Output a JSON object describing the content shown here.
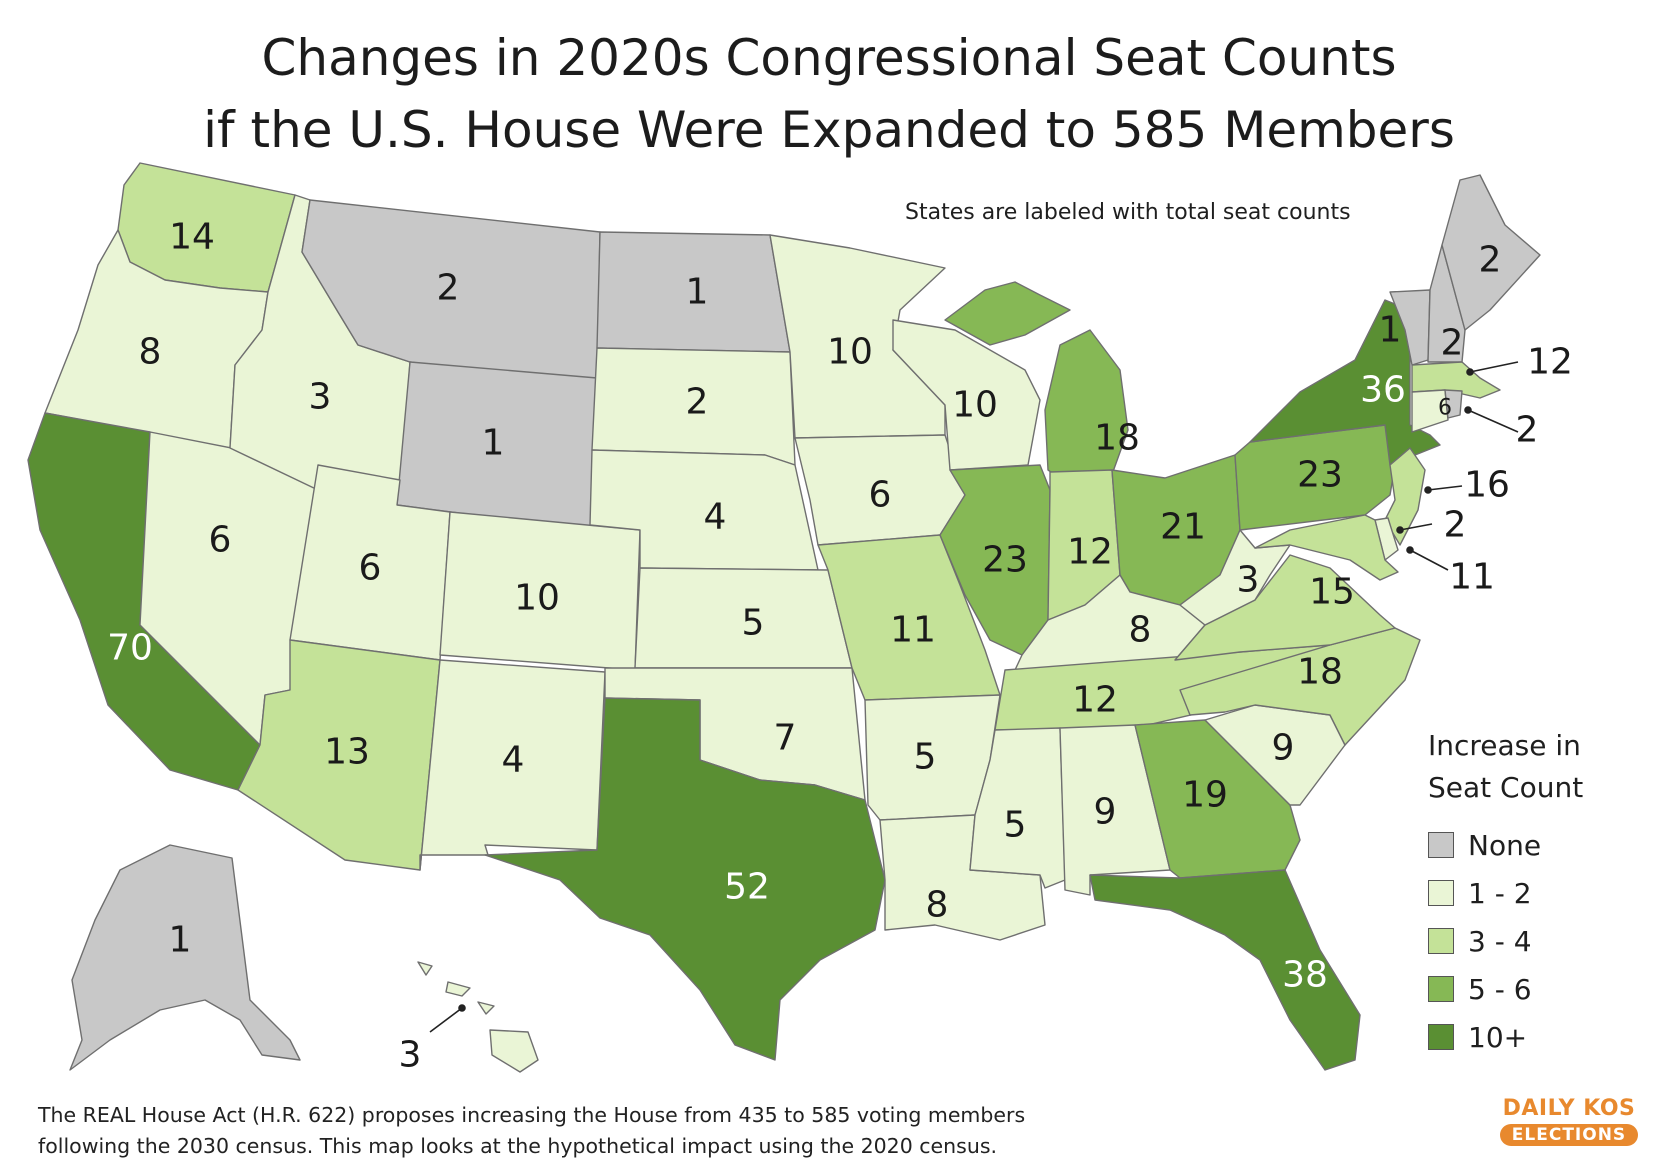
{
  "title": {
    "line1": "Changes in 2020s Congressional Seat Counts",
    "line2": "if the U.S. House Were Expanded to 585 Members"
  },
  "subtitle": "States are labeled with total seat counts",
  "legend": {
    "title_line1": "Increase in",
    "title_line2": "Seat Count",
    "items": [
      {
        "label": "None",
        "color": "#c8c8c8"
      },
      {
        "label": "1 - 2",
        "color": "#eaf5d6"
      },
      {
        "label": "3 - 4",
        "color": "#c4e298"
      },
      {
        "label": "5 - 6",
        "color": "#86b855"
      },
      {
        "label": "10+",
        "color": "#5a8f33"
      }
    ]
  },
  "states": {
    "WA": {
      "seats": "14",
      "tier": 2
    },
    "OR": {
      "seats": "8",
      "tier": 1
    },
    "CA": {
      "seats": "70",
      "tier": 4
    },
    "NV": {
      "seats": "6",
      "tier": 1
    },
    "ID": {
      "seats": "3",
      "tier": 1
    },
    "MT": {
      "seats": "2",
      "tier": 0
    },
    "WY": {
      "seats": "1",
      "tier": 0
    },
    "UT": {
      "seats": "6",
      "tier": 1
    },
    "AZ": {
      "seats": "13",
      "tier": 2
    },
    "CO": {
      "seats": "10",
      "tier": 1
    },
    "NM": {
      "seats": "4",
      "tier": 1
    },
    "ND": {
      "seats": "1",
      "tier": 0
    },
    "SD": {
      "seats": "2",
      "tier": 1
    },
    "NE": {
      "seats": "4",
      "tier": 1
    },
    "KS": {
      "seats": "5",
      "tier": 1
    },
    "OK": {
      "seats": "7",
      "tier": 1
    },
    "TX": {
      "seats": "52",
      "tier": 4
    },
    "MN": {
      "seats": "10",
      "tier": 1
    },
    "IA": {
      "seats": "6",
      "tier": 1
    },
    "MO": {
      "seats": "11",
      "tier": 2
    },
    "AR": {
      "seats": "5",
      "tier": 1
    },
    "LA": {
      "seats": "8",
      "tier": 1
    },
    "WI": {
      "seats": "10",
      "tier": 1
    },
    "IL": {
      "seats": "23",
      "tier": 3
    },
    "MI": {
      "seats": "18",
      "tier": 3
    },
    "IN": {
      "seats": "12",
      "tier": 2
    },
    "OH": {
      "seats": "21",
      "tier": 3
    },
    "KY": {
      "seats": "8",
      "tier": 1
    },
    "TN": {
      "seats": "12",
      "tier": 2
    },
    "MS": {
      "seats": "5",
      "tier": 1
    },
    "AL": {
      "seats": "9",
      "tier": 1
    },
    "GA": {
      "seats": "19",
      "tier": 3
    },
    "FL": {
      "seats": "38",
      "tier": 4
    },
    "SC": {
      "seats": "9",
      "tier": 1
    },
    "NC": {
      "seats": "18",
      "tier": 2
    },
    "VA": {
      "seats": "15",
      "tier": 2
    },
    "WV": {
      "seats": "3",
      "tier": 1
    },
    "PA": {
      "seats": "23",
      "tier": 3
    },
    "NY": {
      "seats": "36",
      "tier": 4
    },
    "VT": {
      "seats": "1",
      "tier": 0
    },
    "NH": {
      "seats": "2",
      "tier": 0
    },
    "ME": {
      "seats": "2",
      "tier": 0
    },
    "MA": {
      "seats": "12",
      "tier": 2
    },
    "CT": {
      "seats": "6",
      "tier": 1
    },
    "RI": {
      "seats": "2",
      "tier": 0
    },
    "NJ": {
      "seats": "16",
      "tier": 2
    },
    "DE": {
      "seats": "2",
      "tier": 1
    },
    "MD": {
      "seats": "11",
      "tier": 2
    },
    "AK": {
      "seats": "1",
      "tier": 0
    },
    "HI": {
      "seats": "3",
      "tier": 1
    }
  },
  "footnote": {
    "line1": "The REAL House Act (H.R. 622) proposes increasing the House from 435 to 585 voting members",
    "line2": "following the 2030 census. This map looks at the hypothetical impact using the 2020 census."
  },
  "brand": {
    "top": "DAILY KOS",
    "bottom": "ELECTIONS",
    "color": "#e8892e"
  }
}
